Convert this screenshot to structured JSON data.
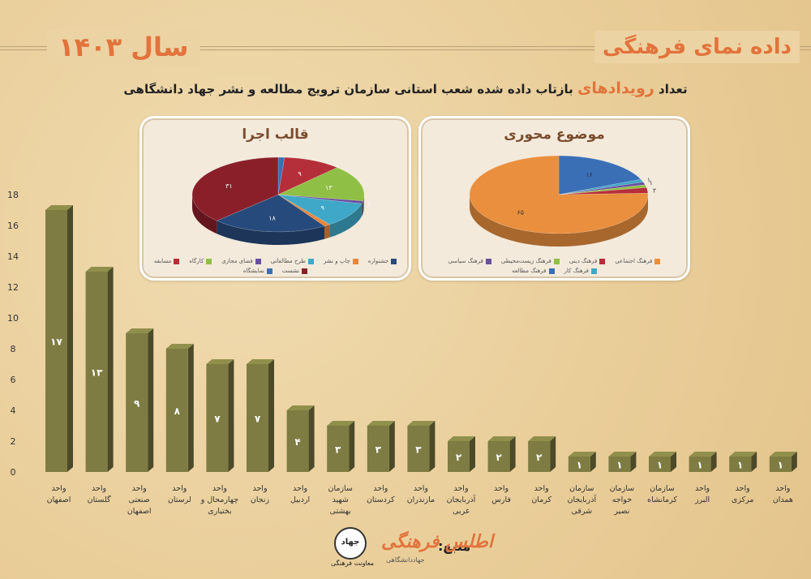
{
  "header": {
    "title": "داده نمای فرهنگی",
    "year_label": "سال ۱۴۰۳"
  },
  "subtitle": {
    "pre": "تعداد ",
    "highlight": "رویدادهای",
    "post": " بازتاب داده شده شعب استانی  سازمان ترویج مطالعه و نشر جهاد دانشگاهی"
  },
  "pie_format": {
    "title": "قالب اجرا",
    "legend": [
      "جشنواره",
      "چاپ و نشر",
      "طرح مطالعاتی",
      "فضای مجازی",
      "کارگاه",
      "مسابقه",
      "نشست",
      "نمایشگاه"
    ]
  },
  "pie_topic": {
    "title": "موضوع محوری",
    "legend": [
      "فرهنگ اجتماعی",
      "فرهنگ دینی",
      "فرهنگ زیست‌محیطی",
      "فرهنگ سیاسی",
      "فرهنگ کار",
      "فرهنگ مطالعه"
    ]
  },
  "chart_data": [
    {
      "type": "bar",
      "categories": [
        "واحد اصفهان",
        "واحد گلستان",
        "واحد صنعتی اصفهان",
        "واحد لرستان",
        "واحد چهارمحال و بختیاری",
        "واحد زنجان",
        "واحد اردبیل",
        "سازمان شهید بهشتی",
        "واحد کردستان",
        "واحد مازندران",
        "واحد آذربایجان غربی",
        "واحد فارس",
        "واحد کرمان",
        "سازمان آذربایجان شرقی",
        "سازمان خواجه نصیر",
        "سازمان کرمانشاه",
        "واحد البرز",
        "واحد مرکزی",
        "واحد همدان"
      ],
      "values": [
        17,
        13,
        9,
        8,
        7,
        7,
        4,
        3,
        3,
        3,
        2,
        2,
        2,
        1,
        1,
        1,
        1,
        1,
        1
      ],
      "yticks": [
        "0",
        "2",
        "4",
        "6",
        "8",
        "10",
        "12",
        "14",
        "16",
        "18"
      ],
      "ylim": [
        0,
        18
      ],
      "bar_labels": [
        "۱۷",
        "۱۳",
        "۹",
        "۸",
        "۷",
        "۷",
        "۴",
        "۳",
        "۳",
        "۳",
        "۲",
        "۲",
        "۲",
        "۱",
        "۱",
        "۱",
        "۱",
        "۱",
        "۱"
      ],
      "color": "#7e7c42"
    },
    {
      "type": "pie",
      "title": "قالب اجرا",
      "labels": [
        "نمایشگاه",
        "مسابقه",
        "کارگاه",
        "فضای مجازی",
        "طرح مطالعاتی",
        "چاپ و نشر",
        "جشنواره",
        "نشست"
      ],
      "values": [
        1,
        9,
        13,
        1,
        9,
        1,
        18,
        31
      ],
      "slice_labels": [
        "",
        "۹",
        "۱۳",
        "۱",
        "۹",
        "",
        "۱۸",
        "۳۱"
      ],
      "colors": [
        "#3b6fb5",
        "#b52f3a",
        "#8fbf44",
        "#6a4fa0",
        "#3fa8c8",
        "#e8873a",
        "#274a7c",
        "#8a1f2a"
      ]
    },
    {
      "type": "pie",
      "title": "موضوع محوری",
      "labels": [
        "فرهنگ مطالعه",
        "فرهنگ کار",
        "فرهنگ سیاسی",
        "فرهنگ زیست‌محیطی",
        "فرهنگ دینی",
        "فرهنگ اجتماعی"
      ],
      "values": [
        16,
        1,
        1,
        1,
        2,
        65
      ],
      "slice_labels": [
        "۱۶",
        "۱",
        "۱",
        "",
        "۲",
        "۶۵"
      ],
      "colors": [
        "#3b6fb5",
        "#3fa8c8",
        "#6a4fa0",
        "#8fbf44",
        "#b52f3a",
        "#ea8f3e"
      ]
    }
  ],
  "footer": {
    "source_label": "منبع:",
    "atlas_logo": "اطلس فرهنگی",
    "atlas_sub": "جهاددانشگاهی",
    "jahad_logo": "جهاد",
    "jahad_sub": "معاونت فرهنگی"
  }
}
